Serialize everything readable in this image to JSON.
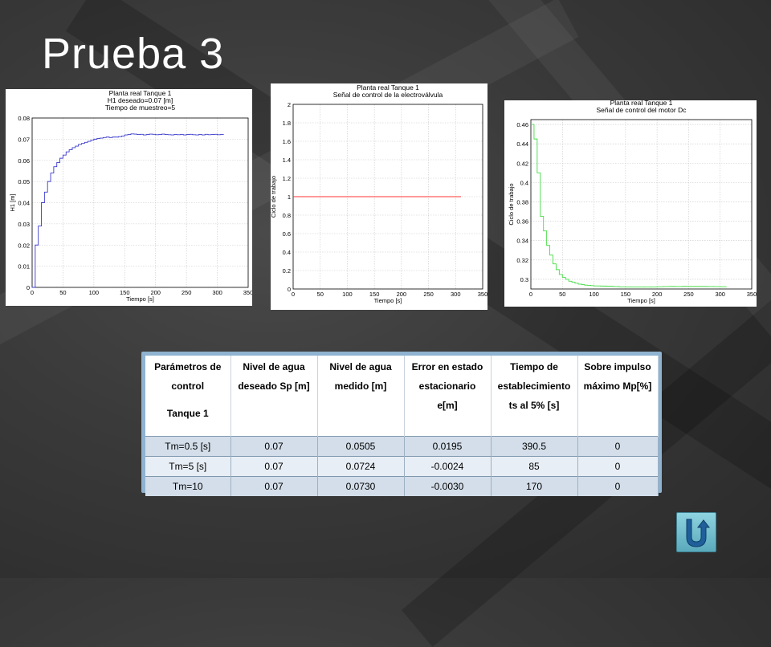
{
  "slide": {
    "title": "Prueba 3"
  },
  "charts": [
    {
      "title_lines": [
        "Planta real Tanque 1",
        "H1 deseado=0.07 [m]",
        "Tiempo de muestreo=5"
      ],
      "xlabel": "Tiempo [s]",
      "ylabel": "H1 [m]",
      "xticks": [
        "0",
        "50",
        "100",
        "150",
        "200",
        "250",
        "300",
        "350"
      ],
      "yticks": [
        "0",
        "0.01",
        "0.02",
        "0.03",
        "0.04",
        "0.05",
        "0.06",
        "0.07",
        "0.08"
      ],
      "line_color": "#3a3acc"
    },
    {
      "title_lines": [
        "Planta real Tanque 1",
        "Señal de control de la electroválvula"
      ],
      "xlabel": "Tiempo [s]",
      "ylabel": "Ciclo de trabajo",
      "xticks": [
        "0",
        "50",
        "100",
        "150",
        "200",
        "250",
        "300",
        "350"
      ],
      "yticks": [
        "0",
        "0.2",
        "0.4",
        "0.6",
        "0.8",
        "1",
        "1.2",
        "1.4",
        "1.6",
        "1.8",
        "2"
      ],
      "line_color": "#ff3333"
    },
    {
      "title_lines": [
        "Planta real Tanque 1",
        "Señal de control del motor Dc"
      ],
      "xlabel": "Tiempo [s]",
      "ylabel": "Ciclo de trabajo",
      "xticks": [
        "0",
        "50",
        "100",
        "150",
        "200",
        "250",
        "300",
        "350"
      ],
      "yticks": [
        "0.3",
        "0.32",
        "0.34",
        "0.36",
        "0.38",
        "0.4",
        "0.42",
        "0.44",
        "0.46"
      ],
      "line_color": "#44dd44"
    }
  ],
  "chart_data": [
    {
      "type": "line",
      "title": "Planta real Tanque 1 / H1 deseado=0.07 [m] / Tiempo de muestreo=5",
      "xlabel": "Tiempo [s]",
      "ylabel": "H1 [m]",
      "xlim": [
        0,
        350
      ],
      "ylim": [
        0,
        0.08
      ],
      "grid": true,
      "series": [
        {
          "x": [
            0,
            5,
            10,
            15,
            20,
            25,
            30,
            35,
            40,
            45,
            50,
            55,
            60,
            65,
            70,
            75,
            80,
            85,
            90,
            95,
            100,
            105,
            110,
            115,
            120,
            125,
            130,
            135,
            140,
            145,
            150,
            155,
            160,
            165,
            170,
            175,
            180,
            185,
            190,
            195,
            200,
            205,
            210,
            215,
            220,
            225,
            230,
            235,
            240,
            245,
            250,
            255,
            260,
            265,
            270,
            275,
            280,
            285,
            290,
            295,
            300,
            305,
            310
          ],
          "y": [
            0,
            0.02,
            0.029,
            0.04,
            0.045,
            0.05,
            0.054,
            0.057,
            0.059,
            0.061,
            0.0625,
            0.064,
            0.065,
            0.066,
            0.0667,
            0.0675,
            0.068,
            0.0685,
            0.069,
            0.0695,
            0.07,
            0.0703,
            0.0705,
            0.0708,
            0.071,
            0.0708,
            0.071,
            0.071,
            0.0712,
            0.0715,
            0.072,
            0.0722,
            0.0725,
            0.0724,
            0.0722,
            0.0723,
            0.072,
            0.0722,
            0.0724,
            0.0723,
            0.0721,
            0.0722,
            0.0724,
            0.0722,
            0.0721,
            0.072,
            0.0722,
            0.0721,
            0.0722,
            0.072,
            0.0722,
            0.0723,
            0.0721,
            0.072,
            0.0722,
            0.072,
            0.0723,
            0.0721,
            0.0722,
            0.0723,
            0.0721,
            0.0722,
            0.0723
          ]
        }
      ]
    },
    {
      "type": "line",
      "title": "Planta real Tanque 1 / Señal de control de la electroválvula",
      "xlabel": "Tiempo [s]",
      "ylabel": "Ciclo de trabajo",
      "xlim": [
        0,
        350
      ],
      "ylim": [
        0,
        2
      ],
      "grid": true,
      "series": [
        {
          "x": [
            0,
            310
          ],
          "y": [
            1,
            1
          ]
        }
      ]
    },
    {
      "type": "line",
      "title": "Planta real Tanque 1 / Señal de control del motor Dc",
      "xlabel": "Tiempo [s]",
      "ylabel": "Ciclo de trabajo",
      "xlim": [
        0,
        350
      ],
      "ylim": [
        0.29,
        0.465
      ],
      "grid": true,
      "series": [
        {
          "x": [
            0,
            5,
            10,
            15,
            20,
            25,
            30,
            35,
            40,
            45,
            50,
            55,
            60,
            65,
            70,
            75,
            80,
            85,
            90,
            95,
            100,
            110,
            120,
            130,
            140,
            150,
            160,
            170,
            180,
            190,
            200,
            210,
            220,
            230,
            240,
            250,
            260,
            270,
            280,
            290,
            300,
            310
          ],
          "y": [
            0.46,
            0.445,
            0.41,
            0.365,
            0.35,
            0.335,
            0.325,
            0.316,
            0.31,
            0.305,
            0.302,
            0.3,
            0.298,
            0.297,
            0.296,
            0.295,
            0.2945,
            0.294,
            0.2938,
            0.2935,
            0.2932,
            0.293,
            0.2928,
            0.2925,
            0.2922,
            0.2921,
            0.2921,
            0.2921,
            0.292,
            0.2921,
            0.2923,
            0.2925,
            0.2926,
            0.2925,
            0.2927,
            0.2926,
            0.2926,
            0.2926,
            0.2925,
            0.2924,
            0.2923,
            0.2924
          ]
        }
      ]
    }
  ],
  "table": {
    "headers": [
      {
        "line1": "Parámetros de control",
        "line2": "Tanque 1"
      },
      {
        "line1": "Nivel de agua deseado Sp [m]"
      },
      {
        "line1": "Nivel de agua medido [m]"
      },
      {
        "line1": "Error en estado estacionario e[m]"
      },
      {
        "line1": "Tiempo de establecimiento ts al 5% [s]"
      },
      {
        "line1": "Sobre impulso máximo Mp[%]"
      }
    ],
    "rows": [
      [
        "Tm=0.5 [s]",
        "0.07",
        "0.0505",
        "0.0195",
        "390.5",
        "0"
      ],
      [
        "Tm=5 [s]",
        "0.07",
        "0.0724",
        "-0.0024",
        "85",
        "0"
      ],
      [
        "Tm=10",
        "0.07",
        "0.0730",
        "-0.0030",
        "170",
        "0"
      ]
    ]
  },
  "icons": {
    "return": "u-turn-return-icon"
  },
  "colors": {
    "table_border": "#8fb3d0",
    "button": "#6fbfcf"
  }
}
